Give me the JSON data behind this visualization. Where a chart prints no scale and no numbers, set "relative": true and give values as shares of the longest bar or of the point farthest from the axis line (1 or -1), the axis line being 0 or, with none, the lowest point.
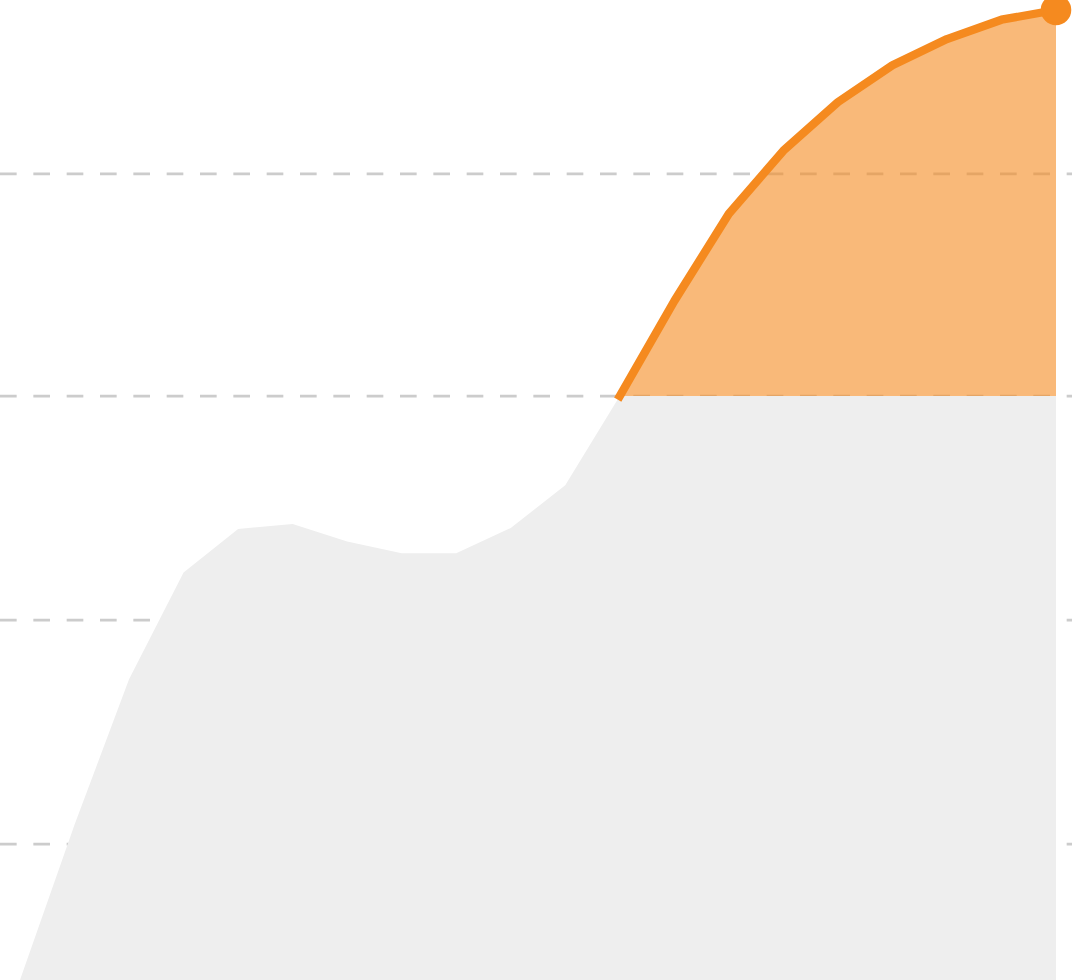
{
  "chart_data": {
    "type": "area",
    "relative": true,
    "legend": false,
    "stacked": true,
    "categories": [
      null,
      null,
      null,
      null,
      null,
      null,
      null,
      null,
      null,
      null,
      null,
      null,
      null,
      null,
      null,
      null,
      null,
      null,
      null,
      null
    ],
    "series": [
      {
        "color": "#eeeeee",
        "values": [
          0,
          0.16,
          0.31,
          0.42,
          0.465,
          0.47,
          0.452,
          0.44,
          0.44,
          0.466,
          0.51,
          0.602,
          0.602,
          0.602,
          0.602,
          0.602,
          0.602,
          0.602,
          0.602,
          0.602
        ]
      },
      {
        "color": "#f58a1f",
        "values": [
          null,
          null,
          null,
          null,
          null,
          null,
          null,
          null,
          null,
          null,
          null,
          0,
          0.098,
          0.188,
          0.253,
          0.303,
          0.341,
          0.368,
          0.388,
          0.398
        ]
      }
    ],
    "ref_lines": [
      {
        "axis": "y",
        "value": 0.831,
        "color": "#cccccc",
        "line_style": "dashed"
      },
      {
        "axis": "y",
        "value": 0.602,
        "color": "#cccccc",
        "line_style": "dashed"
      },
      {
        "axis": "y",
        "value": 0.371,
        "color": "#cccccc",
        "line_style": "dashed"
      },
      {
        "axis": "y",
        "value": 0.14,
        "color": "#cccccc",
        "line_style": "dashed"
      }
    ]
  }
}
